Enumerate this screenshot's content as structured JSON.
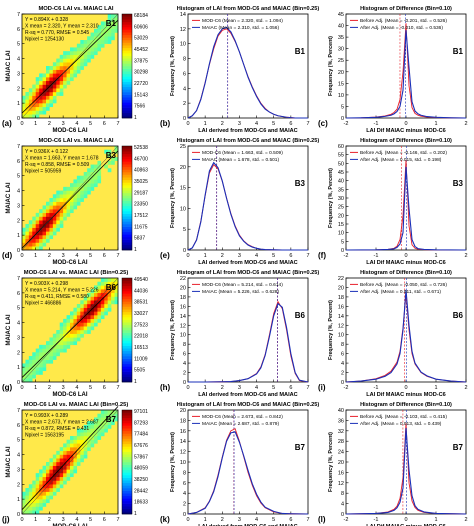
{
  "panel_letters": [
    "(a)",
    "(b)",
    "(c)",
    "(d)",
    "(e)",
    "(f)",
    "(g)",
    "(h)",
    "(i)",
    "(j)",
    "(k)",
    "(l)"
  ],
  "rows": [
    {
      "tag": "B1",
      "scatter": {
        "title": "MOD-C6 LAI vs. MAIAC LAI",
        "ylabel": "MAIAC LAI",
        "xlabel": "MOD-C6 LAI",
        "stats": [
          "Y = 0.894X + 0.328",
          "X mean = 2.320, Y mean = 2.310",
          "R-sq = 0.770, RMSE = 0.545",
          "Npixel = 1254130"
        ],
        "colorbar": [
          "68184",
          "60606",
          "53029",
          "45452",
          "37875",
          "30298",
          "22720",
          "15143",
          "7566",
          "1"
        ]
      },
      "hist": {
        "title": "Histogram of LAI from MOD-C6 and MAIAC (Bin=0.25)",
        "legend": [
          "MOD-C6 (Mean = 2.320, std. = 1.094)",
          "MAIAC (Mean = 2.310, std. = 1.056)"
        ]
      },
      "diff": {
        "title": "Histogram of Difference (Bin=0.10)",
        "legend": [
          "Before Adj. (Mean = -0.201, std. = 0.526)",
          "After Adj. (Mean = -0.010, std. = 0.536)"
        ]
      }
    },
    {
      "tag": "B3",
      "scatter": {
        "title": "MOD-C6 LAI vs. MAIAC LAI",
        "ylabel": "MAIAC LAI",
        "xlabel": "MOD-C6 LAI",
        "stats": [
          "Y = 0.936X + 0.122",
          "X mean = 1.663, Y mean = 1.678",
          "R-sq = 0.858, RMSE = 0.509",
          "Npixel = 505959"
        ],
        "colorbar": [
          "52538",
          "46700",
          "40863",
          "35025",
          "29187",
          "23350",
          "17512",
          "11675",
          "5837",
          "1"
        ]
      },
      "hist": {
        "title": "Histogram of LAI from MOD-C6 and MAIAC (Bin=0.25)",
        "legend": [
          "MOD-C6 (Mean = 1.663, std. = 0.509)",
          "MAIAC (Mean = 1.678, std. = 0.501)"
        ]
      },
      "diff": {
        "title": "Histogram of Difference (Bin=0.10)",
        "legend": [
          "Before Adj. (Mean = -0.146, std. = 0.202)",
          "After Adj. (Mean = 0.015, std. = 0.198)"
        ]
      }
    },
    {
      "tag": "B6",
      "scatter": {
        "title": "MOD-C6 LAI vs. MAIAC LAI (Bin=0.25)",
        "ylabel": "MAIAC LAI",
        "xlabel": "MOD-C6 LAI",
        "stats": [
          "Y = 0.903X + 0.298",
          "X mean = 5.214, Y mean = 5.226",
          "R-sq = 0.411, RMSE = 0.580",
          "Npixel = 466886"
        ],
        "colorbar": [
          "49540",
          "44036",
          "38531",
          "33027",
          "27523",
          "22018",
          "16513",
          "11009",
          "5505",
          "1"
        ]
      },
      "hist": {
        "title": "Histogram of LAI from MOD-C6 and MAIAC (Bin=0.25)",
        "legend": [
          "MOD-C6 (Mean = 5.214, std. = 0.614)",
          "MAIAC (Mean = 5.226, std. = 0.628)"
        ]
      },
      "diff": {
        "title": "Histogram of Difference (Bin=0.10)",
        "legend": [
          "Before Adj. (Mean = -0.050, std. = 0.726)",
          "After Adj. (Mean = 0.011, std. = 0.671)"
        ]
      }
    },
    {
      "tag": "B7",
      "scatter": {
        "title": "MOD-C6 LAI vs. MAIAC LAI (Bin=0.25)",
        "ylabel": "MAIAC LAI",
        "xlabel": "MOD-C6 LAI",
        "stats": [
          "Y = 0.993X + 0.289",
          "X mean = 2.673, Y mean = 2.687",
          "R-sq = 0.872, RMSE = 0.431",
          "Npixel = 1563195"
        ],
        "colorbar": [
          "97101",
          "87293",
          "77484",
          "67676",
          "57867",
          "48059",
          "38250",
          "28442",
          "18633",
          "1"
        ]
      },
      "hist": {
        "title": "Histogram of LAI from MOD-C6 and MAIAC (Bin=0.25)",
        "legend": [
          "MOD-C6 (Mean = 2.673, std. = 0.842)",
          "MAIAC (Mean = 2.687, std. = 0.879)"
        ]
      },
      "diff": {
        "title": "Histogram of Difference (Bin=0.10)",
        "legend": [
          "Before Adj. (Mean = -0.103, std. = 0.415)",
          "After Adj. (Mean = 0.013, std. = 0.439)"
        ]
      }
    }
  ],
  "hist_axes": {
    "xlabel": "LAI derived from MOD-C6 and MAIAC",
    "ylabel": "Frequency (%, Percent)"
  },
  "diff_axes": {
    "xlabel": "LAI Dif MAIAC minus MOD-C6",
    "ylabel": "Frequency (%, Percent)"
  },
  "colors": {
    "mod_c6": "#e8202a",
    "maiac": "#1a2fb8",
    "before_adj": "#e8202a",
    "after_adj": "#1a2fb8",
    "fit_line": "#000000",
    "scatter_bg": "#ffe94a"
  },
  "chart_data": [
    {
      "panel": "(a)",
      "type": "heatmap",
      "x_range": [
        0,
        7
      ],
      "y_range": [
        0,
        7
      ],
      "xticks": [
        0,
        1,
        2,
        3,
        4,
        5,
        6,
        7
      ],
      "yticks": [
        0,
        1,
        2,
        3,
        4,
        5,
        6,
        7
      ],
      "colormap": "jet",
      "fit": {
        "slope": 0.894,
        "intercept": 0.328
      }
    },
    {
      "panel": "(b)",
      "type": "line",
      "xlim": [
        0,
        7
      ],
      "ylim": [
        0,
        14
      ],
      "xticks": [
        0,
        1,
        2,
        3,
        4,
        5,
        6,
        7
      ],
      "yticks": [
        0,
        2,
        4,
        6,
        8,
        10,
        12,
        14
      ],
      "x": [
        0,
        0.25,
        0.5,
        0.75,
        1.0,
        1.25,
        1.5,
        1.75,
        2.0,
        2.25,
        2.5,
        2.75,
        3.0,
        3.25,
        3.5,
        3.75,
        4.0,
        4.25,
        4.5,
        4.75,
        5.0,
        5.25,
        5.5,
        5.75,
        6.0,
        6.25,
        6.5,
        6.75,
        7.0
      ],
      "series": [
        {
          "name": "MOD-C6",
          "values": [
            0,
            0.3,
            1.0,
            2.6,
            4.8,
            7.2,
            9.3,
            11.0,
            11.8,
            12.0,
            11.4,
            10.3,
            8.9,
            7.2,
            5.6,
            4.2,
            3.0,
            2.0,
            1.3,
            0.8,
            0.5,
            0.3,
            0.2,
            0.1,
            0.05,
            0,
            0,
            0,
            0
          ]
        },
        {
          "name": "MAIAC",
          "values": [
            0,
            0.3,
            1.0,
            2.5,
            4.7,
            7.3,
            9.6,
            11.2,
            12.0,
            12.2,
            11.6,
            10.4,
            8.9,
            7.2,
            5.5,
            4.1,
            2.9,
            1.9,
            1.2,
            0.8,
            0.5,
            0.3,
            0.2,
            0.1,
            0.05,
            0,
            0,
            0,
            0
          ]
        }
      ],
      "mean_lines": [
        2.32,
        2.31
      ]
    },
    {
      "panel": "(c)",
      "type": "line",
      "xlim": [
        -2,
        2
      ],
      "ylim": [
        0,
        45
      ],
      "xticks": [
        -2,
        -1,
        0,
        1,
        2
      ],
      "yticks": [
        0,
        5,
        10,
        15,
        20,
        25,
        30,
        35,
        40,
        45
      ],
      "x": [
        -2.0,
        -1.5,
        -1.0,
        -0.7,
        -0.5,
        -0.4,
        -0.3,
        -0.2,
        -0.1,
        0.0,
        0.1,
        0.2,
        0.3,
        0.4,
        0.5,
        0.7,
        1.0,
        1.5,
        2.0
      ],
      "series": [
        {
          "name": "Before Adj.",
          "values": [
            0,
            0.1,
            0.4,
            0.9,
            1.6,
            2.4,
            3.8,
            8.0,
            20.0,
            41.0,
            14.0,
            4.5,
            2.0,
            1.2,
            0.8,
            0.4,
            0.2,
            0.05,
            0
          ]
        },
        {
          "name": "After Adj.",
          "values": [
            0,
            0.1,
            0.3,
            0.7,
            1.2,
            1.8,
            2.8,
            5.0,
            12.0,
            38.0,
            22.0,
            7.0,
            3.0,
            1.8,
            1.2,
            0.6,
            0.3,
            0.1,
            0
          ]
        }
      ],
      "mean_lines": [
        -0.201,
        -0.01
      ]
    },
    {
      "panel": "(d)",
      "type": "heatmap",
      "x_range": [
        0,
        7
      ],
      "y_range": [
        0,
        7
      ],
      "xticks": [
        0,
        1,
        2,
        3,
        4,
        5,
        6,
        7
      ],
      "yticks": [
        0,
        1,
        2,
        3,
        4,
        5,
        6,
        7
      ],
      "colormap": "jet",
      "fit": {
        "slope": 0.936,
        "intercept": 0.122
      }
    },
    {
      "panel": "(e)",
      "type": "line",
      "xlim": [
        0,
        7
      ],
      "ylim": [
        0,
        25
      ],
      "xticks": [
        0,
        1,
        2,
        3,
        4,
        5,
        6,
        7
      ],
      "yticks": [
        0,
        5,
        10,
        15,
        20,
        25
      ],
      "x": [
        0,
        0.25,
        0.5,
        0.75,
        1.0,
        1.25,
        1.5,
        1.75,
        2.0,
        2.25,
        2.5,
        2.75,
        3.0,
        3.25,
        3.5,
        3.75,
        4.0,
        4.25,
        4.5,
        5.0,
        5.5,
        6.0,
        7.0
      ],
      "series": [
        {
          "name": "MOD-C6",
          "values": [
            0,
            0.5,
            2.5,
            7.0,
            13.0,
            18.5,
            20.5,
            19.5,
            16.5,
            12.5,
            8.8,
            5.8,
            3.6,
            2.2,
            1.3,
            0.8,
            0.4,
            0.2,
            0.1,
            0.05,
            0,
            0,
            0
          ]
        },
        {
          "name": "MAIAC",
          "values": [
            0,
            0.5,
            2.4,
            6.8,
            13.2,
            19.0,
            21.0,
            19.8,
            16.6,
            12.4,
            8.6,
            5.6,
            3.4,
            2.1,
            1.2,
            0.7,
            0.4,
            0.2,
            0.1,
            0.05,
            0,
            0,
            0
          ]
        }
      ],
      "mean_lines": [
        1.663,
        1.678
      ]
    },
    {
      "panel": "(f)",
      "type": "line",
      "xlim": [
        -2,
        2
      ],
      "ylim": [
        0,
        60
      ],
      "xticks": [
        -2,
        -1,
        0,
        1,
        2
      ],
      "yticks": [
        0,
        5,
        10,
        15,
        20,
        25,
        30,
        35,
        40,
        45,
        50,
        55,
        60
      ],
      "x": [
        -2.0,
        -1.0,
        -0.6,
        -0.4,
        -0.3,
        -0.2,
        -0.1,
        0.0,
        0.1,
        0.2,
        0.3,
        0.4,
        0.6,
        1.0,
        2.0
      ],
      "series": [
        {
          "name": "Before Adj.",
          "values": [
            0,
            0.1,
            0.4,
            1.0,
            2.2,
            6.0,
            20.0,
            52.0,
            14.0,
            3.0,
            1.0,
            0.5,
            0.2,
            0.05,
            0
          ]
        },
        {
          "name": "After Adj.",
          "values": [
            0,
            0.1,
            0.3,
            0.7,
            1.5,
            3.5,
            10.0,
            48.0,
            24.0,
            6.0,
            2.0,
            0.8,
            0.3,
            0.1,
            0
          ]
        }
      ],
      "mean_lines": [
        -0.146,
        0.015
      ]
    },
    {
      "panel": "(g)",
      "type": "heatmap",
      "x_range": [
        0,
        7
      ],
      "y_range": [
        0,
        7
      ],
      "xticks": [
        0,
        1,
        2,
        3,
        4,
        5,
        6,
        7
      ],
      "yticks": [
        0,
        1,
        2,
        3,
        4,
        5,
        6,
        7
      ],
      "colormap": "jet",
      "fit": {
        "slope": 0.903,
        "intercept": 0.298
      }
    },
    {
      "panel": "(h)",
      "type": "line",
      "xlim": [
        0,
        7
      ],
      "ylim": [
        0,
        22
      ],
      "xticks": [
        0,
        1,
        2,
        3,
        4,
        5,
        6,
        7
      ],
      "yticks": [
        0,
        2,
        4,
        6,
        8,
        10,
        12,
        14,
        16,
        18,
        20,
        22
      ],
      "x": [
        0,
        1.0,
        2.0,
        2.5,
        3.0,
        3.5,
        4.0,
        4.25,
        4.5,
        4.75,
        5.0,
        5.25,
        5.5,
        5.75,
        6.0,
        6.25,
        6.5,
        7.0
      ],
      "series": [
        {
          "name": "MOD-C6",
          "values": [
            0,
            0,
            0.05,
            0.1,
            0.3,
            0.7,
            1.8,
            3.2,
            5.8,
            10.0,
            14.5,
            17.0,
            15.5,
            11.0,
            5.5,
            1.8,
            0.3,
            0
          ]
        },
        {
          "name": "MAIAC",
          "values": [
            0,
            0,
            0.05,
            0.1,
            0.3,
            0.7,
            1.7,
            3.0,
            5.6,
            9.6,
            14.0,
            16.6,
            15.8,
            11.5,
            6.0,
            2.0,
            0.4,
            0
          ]
        }
      ],
      "mean_lines": [
        5.214,
        5.226
      ]
    },
    {
      "panel": "(i)",
      "type": "line",
      "xlim": [
        -2,
        2
      ],
      "ylim": [
        0,
        22
      ],
      "xticks": [
        -2,
        -1,
        0,
        1,
        2
      ],
      "yticks": [
        0,
        2,
        4,
        6,
        8,
        10,
        12,
        14,
        16,
        18,
        20,
        22
      ],
      "x": [
        -2.0,
        -1.5,
        -1.0,
        -0.7,
        -0.5,
        -0.3,
        -0.2,
        -0.1,
        0.0,
        0.1,
        0.2,
        0.3,
        0.5,
        0.7,
        1.0,
        1.5,
        2.0
      ],
      "series": [
        {
          "name": "Before Adj.",
          "values": [
            0,
            0.2,
            0.7,
            1.4,
            2.3,
            4.2,
            6.5,
            11.5,
            18.5,
            11.0,
            6.0,
            3.8,
            2.0,
            1.2,
            0.6,
            0.2,
            0
          ]
        },
        {
          "name": "After Adj.",
          "values": [
            0,
            0.2,
            0.6,
            1.2,
            2.0,
            3.8,
            6.0,
            11.0,
            19.5,
            12.0,
            6.5,
            4.0,
            2.1,
            1.3,
            0.6,
            0.2,
            0
          ]
        }
      ],
      "mean_lines": [
        -0.05,
        0.011
      ]
    },
    {
      "panel": "(j)",
      "type": "heatmap",
      "x_range": [
        0,
        7
      ],
      "y_range": [
        0,
        7
      ],
      "xticks": [
        0,
        1,
        2,
        3,
        4,
        5,
        6,
        7
      ],
      "yticks": [
        0,
        1,
        2,
        3,
        4,
        5,
        6,
        7
      ],
      "colormap": "jet",
      "fit": {
        "slope": 0.993,
        "intercept": 0.289
      }
    },
    {
      "panel": "(k)",
      "type": "line",
      "xlim": [
        0,
        7
      ],
      "ylim": [
        0,
        20
      ],
      "xticks": [
        0,
        1,
        2,
        3,
        4,
        5,
        6,
        7
      ],
      "yticks": [
        0,
        2,
        4,
        6,
        8,
        10,
        12,
        14,
        16,
        18,
        20
      ],
      "x": [
        0,
        0.5,
        1.0,
        1.25,
        1.5,
        1.75,
        2.0,
        2.25,
        2.5,
        2.75,
        3.0,
        3.25,
        3.5,
        3.75,
        4.0,
        4.25,
        4.5,
        5.0,
        5.5,
        6.0,
        7.0
      ],
      "series": [
        {
          "name": "MOD-C6",
          "values": [
            0,
            0.3,
            1.2,
            2.5,
            4.5,
            7.5,
            11.0,
            14.2,
            16.0,
            16.4,
            14.0,
            11.0,
            8.0,
            5.5,
            3.5,
            2.1,
            1.2,
            0.4,
            0.1,
            0.05,
            0
          ]
        },
        {
          "name": "MAIAC",
          "values": [
            0,
            0.3,
            1.1,
            2.4,
            4.3,
            7.2,
            10.8,
            14.0,
            15.6,
            15.8,
            13.8,
            11.2,
            8.4,
            5.8,
            3.8,
            2.3,
            1.3,
            0.5,
            0.1,
            0.05,
            0
          ]
        }
      ],
      "mean_lines": [
        2.673,
        2.687
      ]
    },
    {
      "panel": "(l)",
      "type": "line",
      "xlim": [
        -2,
        2
      ],
      "ylim": [
        0,
        40
      ],
      "xticks": [
        -2,
        -1,
        0,
        1,
        2
      ],
      "yticks": [
        0,
        4,
        8,
        12,
        16,
        20,
        24,
        28,
        32,
        36,
        40
      ],
      "x": [
        -2.0,
        -1.0,
        -0.6,
        -0.4,
        -0.3,
        -0.2,
        -0.1,
        0.0,
        0.1,
        0.2,
        0.3,
        0.4,
        0.6,
        1.0,
        2.0
      ],
      "series": [
        {
          "name": "Before Adj.",
          "values": [
            0,
            0.2,
            0.8,
            1.8,
            3.0,
            6.0,
            14.0,
            35.0,
            12.0,
            5.0,
            2.5,
            1.4,
            0.6,
            0.2,
            0
          ]
        },
        {
          "name": "After Adj.",
          "values": [
            0,
            0.2,
            0.6,
            1.4,
            2.4,
            4.5,
            10.0,
            33.0,
            17.0,
            7.0,
            3.2,
            1.8,
            0.8,
            0.2,
            0
          ]
        }
      ],
      "mean_lines": [
        -0.103,
        0.013
      ]
    }
  ]
}
